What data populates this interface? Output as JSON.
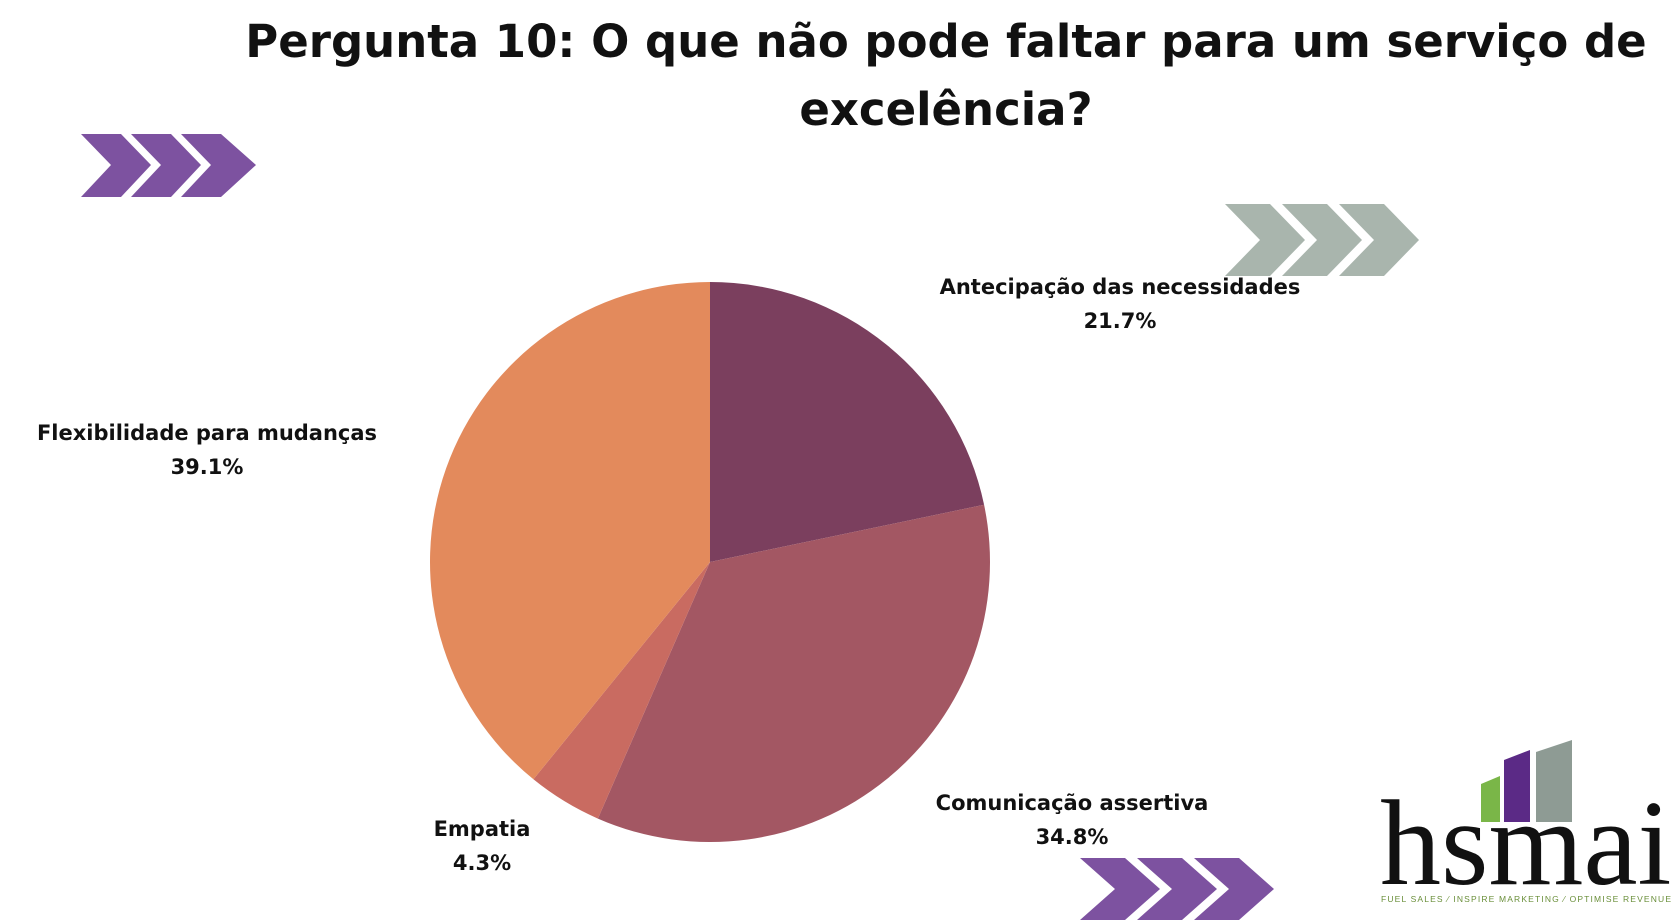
{
  "chart_data": {
    "type": "pie",
    "title": "Pergunta 10: O que não pode faltar para um serviço de excelência?",
    "categories": [
      "Antecipação das necessidades",
      "Comunicação assertiva",
      "Empatia",
      "Flexibilidade para mudanças"
    ],
    "values": [
      21.7,
      34.8,
      4.3,
      39.1
    ],
    "value_labels": [
      "21.7%",
      "34.8%",
      "4.3%",
      "39.1%"
    ],
    "colors": [
      "#7b3f5e",
      "#a35763",
      "#c96b61",
      "#e38a5c"
    ]
  },
  "logo": {
    "name": "hsmai",
    "tagline": "FUEL SALES ⁄ INSPIRE MARKETING ⁄ OPTIMISE REVENUE"
  }
}
